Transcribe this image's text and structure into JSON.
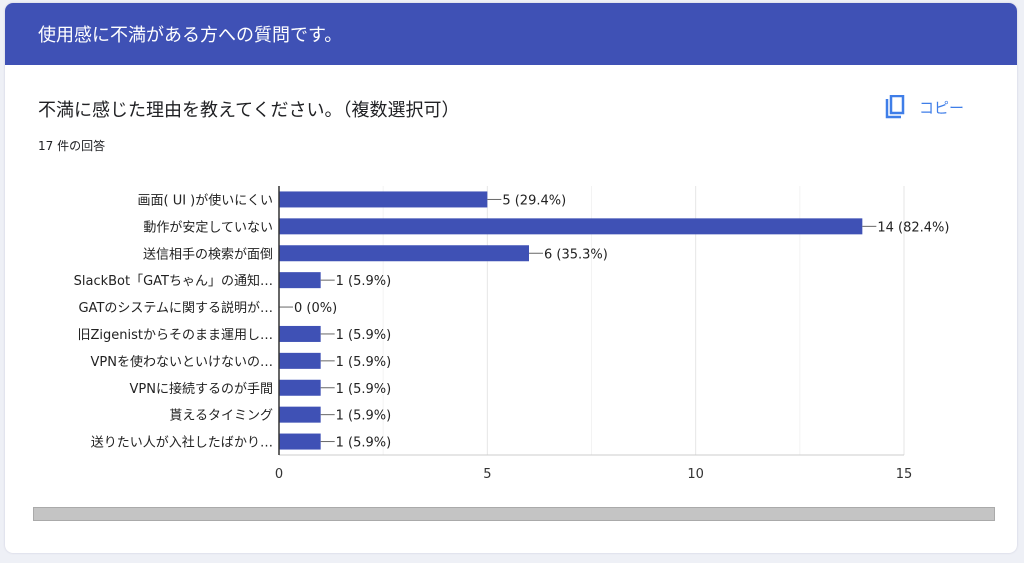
{
  "header": {
    "title": "使用感に不満がある方への質問です。"
  },
  "question": {
    "title": "不満に感じた理由を教えてください。（複数選択可）",
    "response_count": "17 件の回答",
    "copy_label": "コピー"
  },
  "colors": {
    "accent": "#3f51b5",
    "bar": "#3f51b5",
    "copy": "#3f7ee8"
  },
  "chart_data": {
    "type": "bar",
    "orientation": "horizontal",
    "categories": [
      "画面( UI )が使いにくい",
      "動作が安定していない",
      "送信相手の検索が面倒",
      "SlackBot「GATちゃん」の通知…",
      "GATのシステムに関する説明が…",
      "旧Zigenistからそのまま運用し…",
      "VPNを使わないといけないの…",
      "VPNに接続するのが手間",
      "貰えるタイミング",
      "送りたい人が入社したばかり…"
    ],
    "values": [
      5,
      14,
      6,
      1,
      0,
      1,
      1,
      1,
      1,
      1
    ],
    "data_labels": [
      "5 (29.4%)",
      "14 (82.4%)",
      "6 (35.3%)",
      "1 (5.9%)",
      "0 (0%)",
      "1 (5.9%)",
      "1 (5.9%)",
      "1 (5.9%)",
      "1 (5.9%)",
      "1 (5.9%)"
    ],
    "xlim": [
      0,
      15
    ],
    "xticks": [
      "0",
      "5",
      "10",
      "15"
    ],
    "grid": true
  }
}
